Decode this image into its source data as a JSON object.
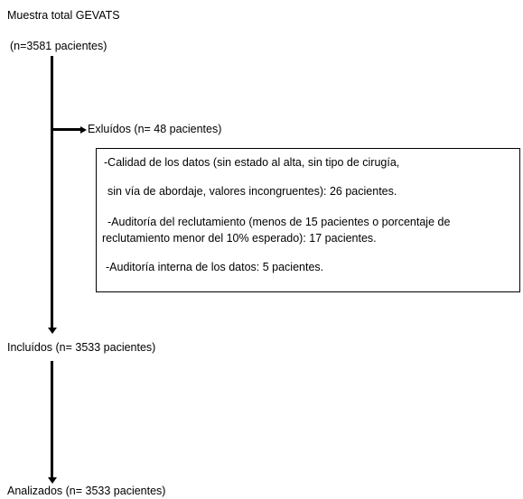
{
  "nodes": {
    "total_title": "Muestra total GEVATS",
    "total_count": "(n=3581 pacientes)",
    "excluded": "Exluídos (n= 48 pacientes)",
    "included": "Incluídos (n= 3533 pacientes)",
    "analyzed": "Analizados (n= 3533 pacientes)"
  },
  "exclusion_reasons": {
    "r1_line1": "-Calidad de los datos (sin estado al alta, sin tipo de cirugía,",
    "r1_line2": "sin vía de abordaje, valores incongruentes): 26 pacientes.",
    "r2_line1": "-Auditoría del reclutamiento (menos de 15 pacientes o porcentaje de",
    "r2_line2": "reclutamiento menor del 10% esperado): 17 pacientes.",
    "r3_line1": "-Auditoría interna de los datos: 5 pacientes."
  }
}
